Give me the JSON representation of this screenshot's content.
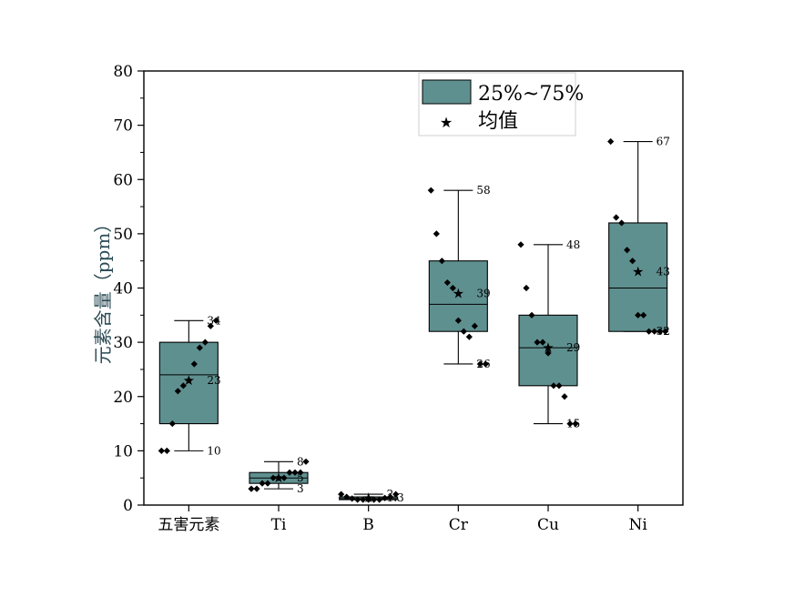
{
  "chart_data": {
    "type": "box",
    "ylabel": "元素含量（ppm）",
    "xlabel": "",
    "ylim": [
      0,
      80
    ],
    "y_ticks": [
      "0",
      "10",
      "20",
      "30",
      "40",
      "50",
      "60",
      "70",
      "80"
    ],
    "categories": [
      "五害元素",
      "Ti",
      "B",
      "Cr",
      "Cu",
      "Ni"
    ],
    "box_color": "#5f9090",
    "legend": {
      "box_label": "25%~75%",
      "mean_label": "均值",
      "placement": "top-right"
    },
    "boxes": [
      {
        "category": "五害元素",
        "min": 10,
        "q1": 15,
        "median": 24,
        "q3": 30,
        "max": 34,
        "mean": 23,
        "points": [
          10,
          10,
          15,
          21,
          22,
          23,
          26,
          29,
          30,
          33,
          34
        ],
        "labels": [
          {
            "text": "34",
            "value": 34
          },
          {
            "text": "23",
            "value": 23
          },
          {
            "text": "10",
            "value": 10
          }
        ]
      },
      {
        "category": "Ti",
        "min": 3,
        "q1": 4,
        "median": 5,
        "q3": 6,
        "max": 8,
        "mean": 5,
        "points": [
          3,
          3,
          4,
          4,
          5,
          5,
          5,
          6,
          6,
          6,
          8
        ],
        "labels": [
          {
            "text": "8",
            "value": 8
          },
          {
            "text": "5",
            "value": 5
          },
          {
            "text": "3",
            "value": 3
          }
        ]
      },
      {
        "category": "B",
        "min": 1,
        "q1": 1,
        "median": 1.2,
        "q3": 1.5,
        "max": 2,
        "mean": 1.3,
        "points": [
          2,
          1.5,
          1.2,
          1,
          1,
          1,
          1,
          1,
          1.3,
          1.5,
          2
        ],
        "labels": [
          {
            "text": "2",
            "value": 2
          },
          {
            "text": "1.3",
            "value": 1.3
          }
        ]
      },
      {
        "category": "Cr",
        "min": 26,
        "q1": 32,
        "median": 37,
        "q3": 45,
        "max": 58,
        "mean": 39,
        "points": [
          58,
          50,
          45,
          41,
          40,
          34,
          32,
          31,
          33,
          26,
          26
        ],
        "labels": [
          {
            "text": "58",
            "value": 58
          },
          {
            "text": "39",
            "value": 39
          },
          {
            "text": "26",
            "value": 26
          }
        ]
      },
      {
        "category": "Cu",
        "min": 15,
        "q1": 22,
        "median": 29,
        "q3": 35,
        "max": 48,
        "mean": 29,
        "points": [
          48,
          40,
          35,
          30,
          30,
          28,
          22,
          22,
          20,
          15,
          15
        ],
        "labels": [
          {
            "text": "48",
            "value": 48
          },
          {
            "text": "29",
            "value": 29
          },
          {
            "text": "15",
            "value": 15
          }
        ]
      },
      {
        "category": "Ni",
        "min": 32,
        "q1": 32,
        "median": 40,
        "q3": 52,
        "max": 67,
        "mean": 43,
        "points": [
          67,
          53,
          52,
          47,
          45,
          35,
          35,
          32,
          32,
          32,
          32
        ],
        "labels": [
          {
            "text": "67",
            "value": 67
          },
          {
            "text": "43",
            "value": 43
          },
          {
            "text": "32",
            "value": 32
          }
        ]
      }
    ]
  }
}
